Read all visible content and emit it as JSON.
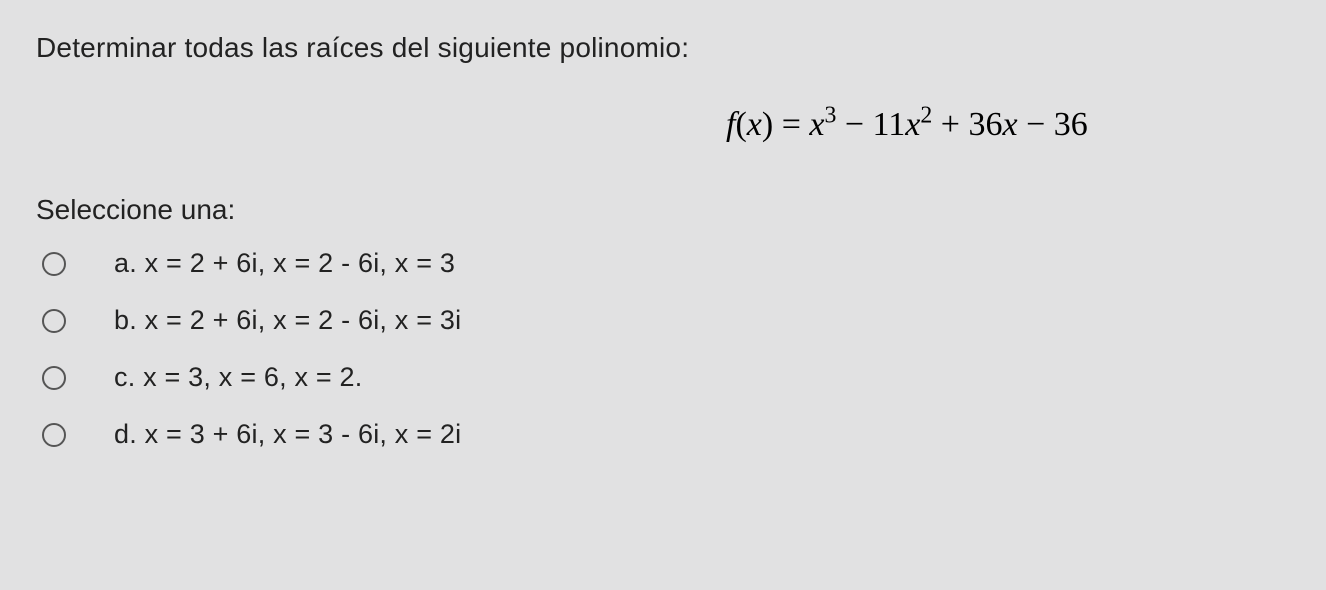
{
  "question": "Determinar todas las raíces del siguiente polinomio:",
  "equation": {
    "lhs_fn": "f",
    "lhs_var": "x",
    "rhs_var": "x",
    "coef1": "− 11",
    "coef2": "+ 36",
    "coef3": "− 36"
  },
  "select_prompt": "Seleccione una:",
  "options": {
    "a": "a. x = 2 + 6i, x = 2 - 6i, x = 3",
    "b": "b. x = 2 + 6i, x = 2 - 6i, x = 3i",
    "c": "c. x = 3,   x = 6,   x = 2.",
    "d": "d. x = 3 + 6i, x = 3 - 6i, x = 2i"
  }
}
